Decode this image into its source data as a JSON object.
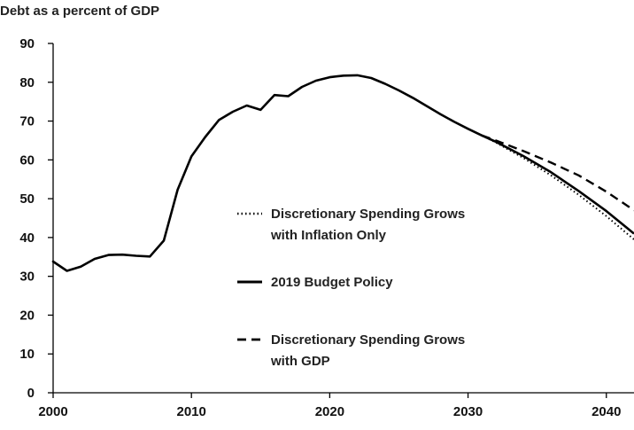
{
  "chart_data": {
    "type": "line",
    "title": "",
    "ylabel": "Debt as a percent of GDP",
    "xlabel": "",
    "xlim": [
      2000,
      2042
    ],
    "ylim": [
      0,
      90
    ],
    "xticks": [
      2000,
      2010,
      2020,
      2030,
      2040
    ],
    "yticks": [
      0,
      10,
      20,
      30,
      40,
      50,
      60,
      70,
      80,
      90
    ],
    "grid": false,
    "legend_position": "center",
    "historical": {
      "x": [
        2000,
        2001,
        2002,
        2003,
        2004,
        2005,
        2006,
        2007,
        2008,
        2009,
        2010,
        2011,
        2012,
        2013,
        2014,
        2015,
        2016,
        2017,
        2018,
        2019,
        2020,
        2021,
        2022,
        2023,
        2024,
        2025,
        2026,
        2027,
        2028,
        2029,
        2030,
        2031
      ],
      "y": [
        33.8,
        31.4,
        32.5,
        34.5,
        35.5,
        35.6,
        35.3,
        35.1,
        39.2,
        52.3,
        60.9,
        65.9,
        70.3,
        72.4,
        74.0,
        72.9,
        76.7,
        76.4,
        78.8,
        80.4,
        81.3,
        81.7,
        81.8,
        81.1,
        79.6,
        77.9,
        76.0,
        73.9,
        71.8,
        69.8,
        68.0,
        66.3
      ]
    },
    "series": [
      {
        "name": "Discretionary Spending Grows with Inflation Only",
        "style": "dotted",
        "x": [
          2031,
          2032,
          2034,
          2036,
          2038,
          2040,
          2042
        ],
        "y": [
          66.3,
          64.5,
          60.5,
          56.0,
          51.0,
          45.5,
          39.5
        ]
      },
      {
        "name": "2019 Budget Policy",
        "style": "solid",
        "x": [
          2031,
          2032,
          2034,
          2036,
          2038,
          2040,
          2042
        ],
        "y": [
          66.3,
          64.7,
          61.0,
          56.8,
          52.0,
          46.8,
          41.0
        ]
      },
      {
        "name": "Discretionary Spending Grows with GDP",
        "style": "dashed",
        "x": [
          2031,
          2032,
          2034,
          2036,
          2038,
          2040,
          2042
        ],
        "y": [
          66.3,
          65.0,
          62.3,
          59.3,
          56.0,
          51.8,
          47.0
        ]
      }
    ],
    "legend": [
      {
        "line1": "Discretionary Spending Grows",
        "line2": "with Inflation Only"
      },
      {
        "line1": "2019 Budget Policy",
        "line2": ""
      },
      {
        "line1": "Discretionary Spending Grows",
        "line2": "with GDP"
      }
    ],
    "colors": {
      "line": "#000000",
      "axis": "#000000",
      "text": "#111111"
    }
  }
}
